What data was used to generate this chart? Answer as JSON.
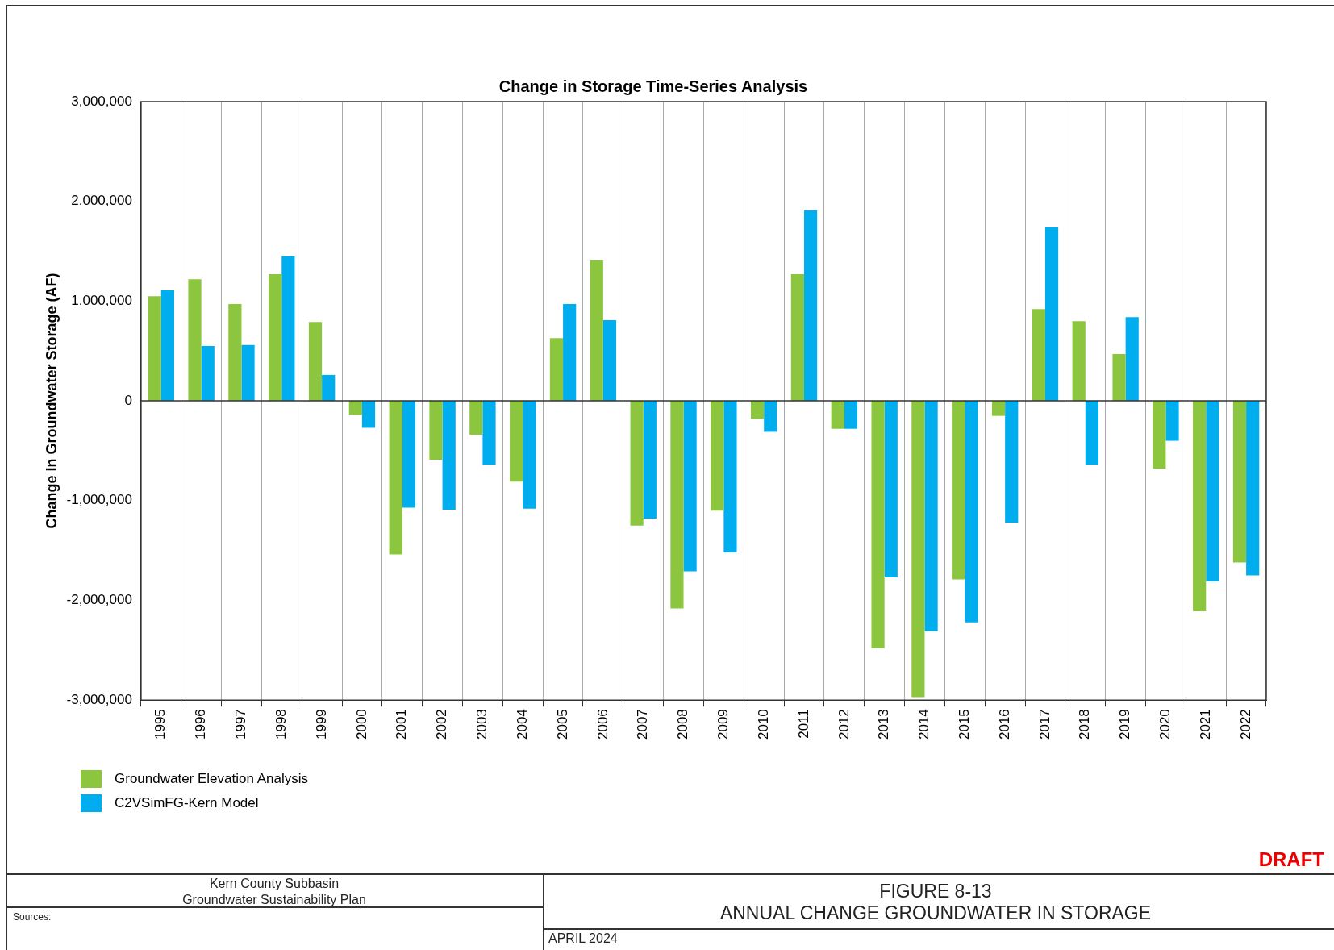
{
  "chart_data": {
    "type": "bar",
    "title": "Change in Storage Time-Series Analysis",
    "ylabel": "Change in Groundwater Storage (AF)",
    "categories": [
      "1995",
      "1996",
      "1997",
      "1998",
      "1999",
      "2000",
      "2001",
      "2002",
      "2003",
      "2004",
      "2005",
      "2006",
      "2007",
      "2008",
      "2009",
      "2010",
      "2011",
      "2012",
      "2013",
      "2014",
      "2015",
      "2016",
      "2017",
      "2018",
      "2019",
      "2020",
      "2021",
      "2022"
    ],
    "series": [
      {
        "name": "Groundwater Elevation Analysis",
        "color": "#8cc63f",
        "values": [
          1050000,
          1220000,
          970000,
          1270000,
          790000,
          -140000,
          -1540000,
          -590000,
          -340000,
          -810000,
          630000,
          1410000,
          -1250000,
          -2080000,
          -1100000,
          -180000,
          1270000,
          -280000,
          -2480000,
          -2970000,
          -1790000,
          -150000,
          920000,
          800000,
          470000,
          -680000,
          -2110000,
          -1620000
        ]
      },
      {
        "name": "C2VSimFG-Kern Model",
        "color": "#00aeef",
        "values": [
          1110000,
          550000,
          560000,
          1450000,
          260000,
          -270000,
          -1070000,
          -1090000,
          -640000,
          -1080000,
          970000,
          810000,
          -1180000,
          -1710000,
          -1520000,
          -310000,
          1910000,
          -280000,
          -1770000,
          -2310000,
          -2220000,
          -1220000,
          1740000,
          -640000,
          840000,
          -400000,
          -1810000,
          -1750000
        ]
      }
    ],
    "ylim": [
      -3000000,
      3000000
    ],
    "yticks": [
      {
        "value": -3000000,
        "label": "-3,000,000"
      },
      {
        "value": -2000000,
        "label": "-2,000,000"
      },
      {
        "value": -1000000,
        "label": "-1,000,000"
      },
      0,
      {
        "value": 1000000,
        "label": "1,000,000"
      },
      {
        "value": 2000000,
        "label": "2,000,000"
      },
      {
        "value": 3000000,
        "label": "3,000,000"
      }
    ],
    "grid": "x",
    "legend": "bottom left",
    "annotations": [
      "DRAFT",
      "Kern County Subbasin\nGroundwater Sustainability Plan",
      "Sources:",
      "FIGURE 8-13\nANNUAL CHANGE GROUNDWATER IN STORAGE",
      "APRIL 2024"
    ]
  }
}
